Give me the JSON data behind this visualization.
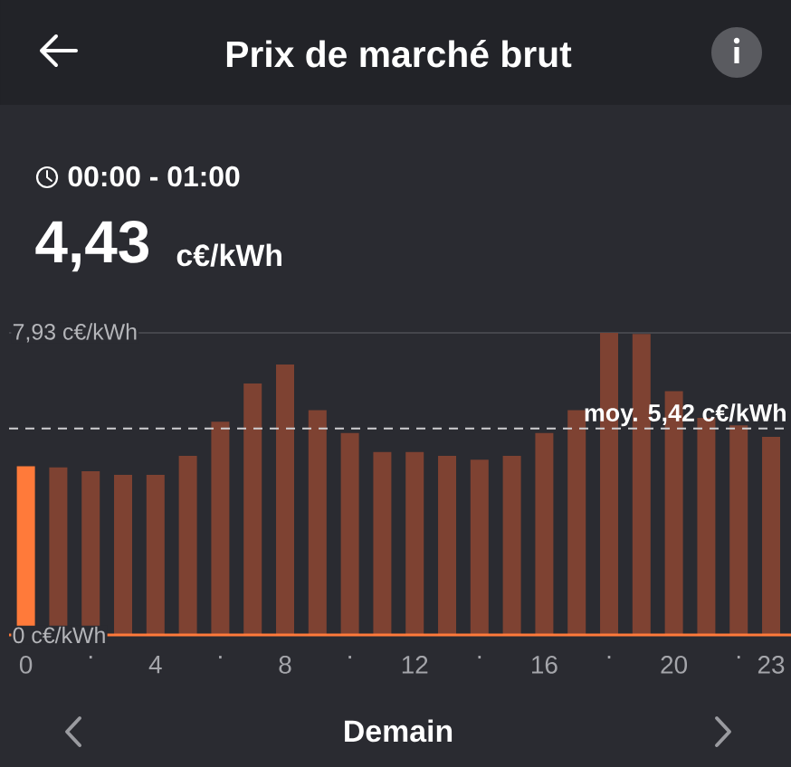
{
  "chart_data": {
    "type": "bar",
    "title": "Prix de marché brut",
    "categories": [
      "0",
      null,
      "·",
      null,
      "4",
      null,
      "·",
      null,
      "8",
      null,
      "·",
      null,
      "12",
      null,
      "·",
      null,
      "16",
      null,
      "·",
      null,
      "20",
      null,
      "·",
      "23"
    ],
    "values": [
      4.43,
      4.4,
      4.3,
      4.2,
      4.2,
      4.7,
      5.6,
      6.6,
      7.1,
      5.9,
      5.3,
      4.8,
      4.8,
      4.7,
      4.6,
      4.7,
      5.3,
      5.9,
      7.93,
      7.9,
      6.4,
      5.7,
      5.5,
      5.2
    ],
    "colors": [
      "#ff7a3a",
      "#7e4232",
      "#7e4232",
      "#7e4232",
      "#7e4232",
      "#7e4232",
      "#7e4232",
      "#7e4232",
      "#7e4232",
      "#7e4232",
      "#7e4232",
      "#7e4232",
      "#7e4232",
      "#7e4232",
      "#7e4232",
      "#7e4232",
      "#7e4232",
      "#7e4232",
      "#7e4232",
      "#7e4232",
      "#7e4232",
      "#7e4232",
      "#7e4232",
      "#7e4232"
    ],
    "ylim": [
      0,
      7.93
    ],
    "yticks": [
      {
        "value": 0,
        "label": "0 c€/kWh"
      },
      {
        "value": 7.93,
        "label": "7,93 c€/kWh"
      }
    ],
    "ref_lines": [
      {
        "axis": "y",
        "value": 5.42,
        "label": "moy. 5,42 c€/kWh",
        "color": "#cfcfd2",
        "line_style": "dashed"
      }
    ],
    "annotations": [
      "00:00 - 01:00",
      "4,43",
      "c€/kWh",
      "Demain"
    ]
  }
}
